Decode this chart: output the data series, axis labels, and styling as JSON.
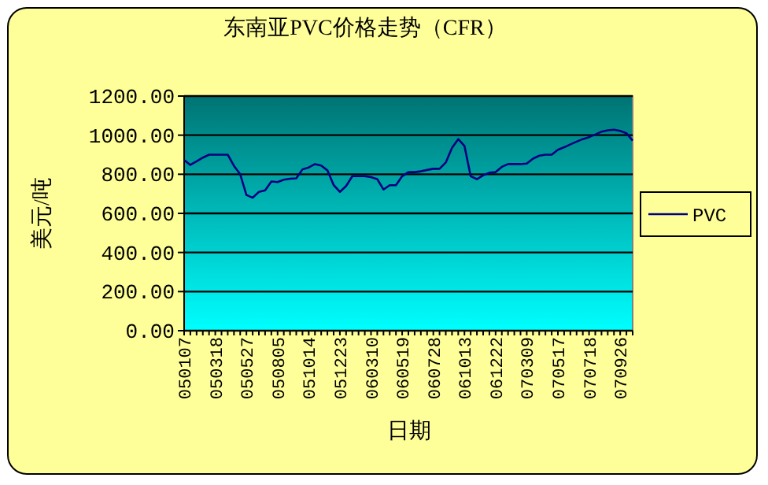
{
  "chart_data": {
    "type": "line",
    "title": "东南亚PVC价格走势（CFR）",
    "xlabel": "日期",
    "ylabel": "美元/吨",
    "categories": [
      "050107",
      null,
      null,
      null,
      null,
      "050318",
      null,
      null,
      null,
      null,
      "050527",
      null,
      null,
      null,
      null,
      "050805",
      null,
      null,
      null,
      null,
      "051014",
      null,
      null,
      null,
      null,
      "051223",
      null,
      null,
      null,
      null,
      "060310",
      null,
      null,
      null,
      null,
      "060519",
      null,
      null,
      null,
      null,
      "060728",
      null,
      null,
      null,
      null,
      "061013",
      null,
      null,
      null,
      null,
      "061222",
      null,
      null,
      null,
      null,
      "070309",
      null,
      null,
      null,
      null,
      "070517",
      null,
      null,
      null,
      null,
      "070718",
      null,
      null,
      null,
      null,
      "070926",
      null,
      null
    ],
    "series": [
      {
        "name": "PVC",
        "color": "#000080",
        "values": [
          873,
          848,
          866,
          885,
          900,
          900,
          900,
          900,
          843,
          800,
          694,
          680,
          710,
          718,
          763,
          760,
          772,
          777,
          779,
          825,
          835,
          852,
          845,
          820,
          745,
          710,
          740,
          790,
          790,
          790,
          785,
          775,
          722,
          744,
          744,
          790,
          811,
          811,
          815,
          822,
          828,
          828,
          860,
          935,
          980,
          945,
          790,
          775,
          795,
          808,
          811,
          838,
          852,
          852,
          852,
          855,
          880,
          895,
          900,
          900,
          925,
          938,
          953,
          967,
          980,
          990,
          1003,
          1018,
          1025,
          1028,
          1022,
          1010,
          972
        ]
      }
    ],
    "ylim": [
      0,
      1200
    ],
    "yticks": [
      {
        "value": 0,
        "label": "0.00"
      },
      {
        "value": 200,
        "label": "200.00"
      },
      {
        "value": 400,
        "label": "400.00"
      },
      {
        "value": 600,
        "label": "600.00"
      },
      {
        "value": 800,
        "label": "800.00"
      },
      {
        "value": 1000,
        "label": "1000.00"
      },
      {
        "value": 1200,
        "label": "1200.00"
      }
    ],
    "grid": "y",
    "legend": "right"
  }
}
